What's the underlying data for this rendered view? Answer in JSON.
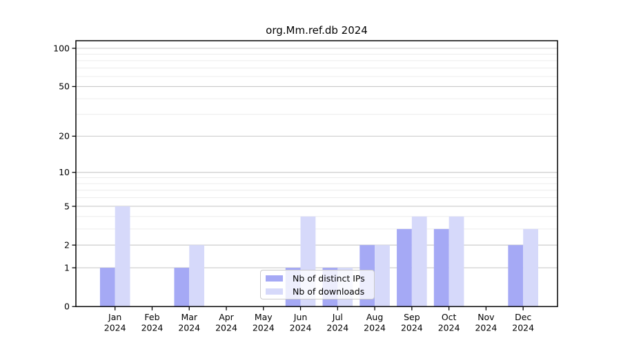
{
  "chart_data": {
    "type": "bar",
    "title": "org.Mm.ref.db 2024",
    "categories": [
      "Jan 2024",
      "Feb 2024",
      "Mar 2024",
      "Apr 2024",
      "May 2024",
      "Jun 2024",
      "Jul 2024",
      "Aug 2024",
      "Sep 2024",
      "Oct 2024",
      "Nov 2024",
      "Dec 2024"
    ],
    "series": [
      {
        "name": "Nb of distinct IPs",
        "color": "#a5a9f5",
        "values": [
          1,
          0,
          1,
          0,
          0,
          1,
          1,
          2,
          3,
          3,
          0,
          2
        ]
      },
      {
        "name": "Nb of downloads",
        "color": "#d6d9fa",
        "values": [
          5,
          0,
          2,
          0,
          0,
          4,
          1,
          2,
          4,
          4,
          0,
          3
        ]
      }
    ],
    "xlabel": "",
    "ylabel": "",
    "yscale": "log1p",
    "ylim": [
      0,
      100
    ],
    "yticks": [
      0,
      1,
      2,
      5,
      10,
      20,
      50,
      100
    ],
    "minor_gridlines": [
      3,
      4,
      6,
      7,
      8,
      9,
      30,
      40,
      60,
      70,
      80,
      90
    ],
    "grid": "horizontal",
    "legend_position": "lower center",
    "colors": {
      "major_grid": "#c9c9c9",
      "minor_grid": "#ececec",
      "axis": "#000000",
      "text": "#000000",
      "legend_border": "#c9c9c9"
    }
  }
}
